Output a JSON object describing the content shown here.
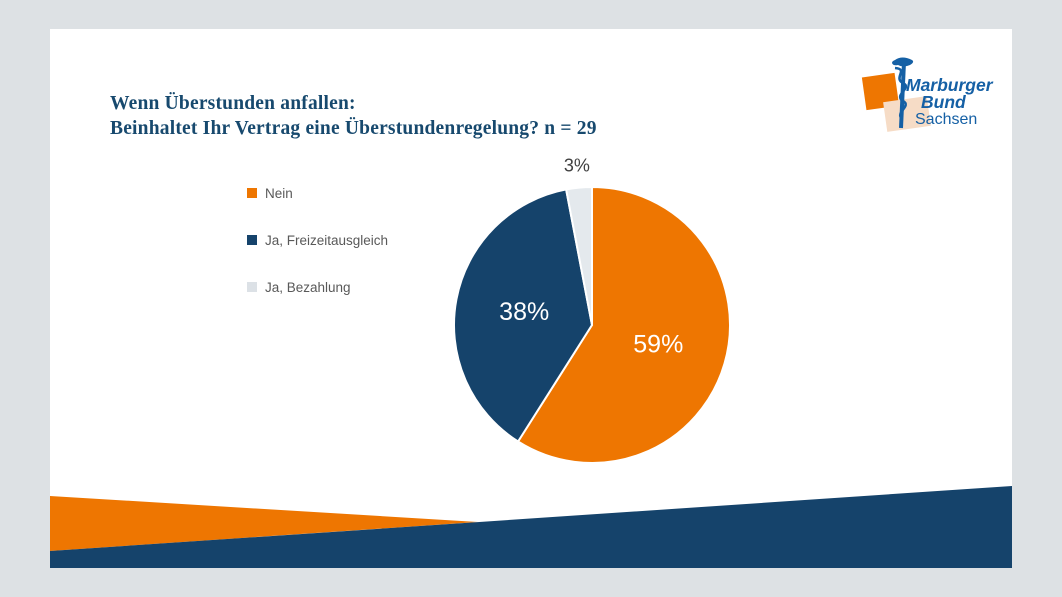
{
  "page": {
    "background_color": "#dde1e4",
    "card_color": "#ffffff"
  },
  "header": {
    "title_line1": "Wenn Überstunden anfallen:",
    "title_line2": "Beinhaltet Ihr Vertrag eine Überstundenregelung? n = 29",
    "title_color": "#17496e"
  },
  "logo": {
    "line1": "Marburger",
    "line2": "Bund",
    "line3": "Sachsen",
    "text_color": "#1560a5",
    "staff_color": "#1560a5",
    "orange_square_color": "#ee7601",
    "peach_square_color": "#f6dcc6"
  },
  "legend": {
    "text_color": "#595959",
    "items": [
      {
        "label": "Nein",
        "color": "#ee7601"
      },
      {
        "label": "Ja, Freizeitausgleich",
        "color": "#15436b"
      },
      {
        "label": "Ja, Bezahlung",
        "color": "#dce1e6"
      }
    ]
  },
  "chart_data": {
    "type": "pie",
    "title": "Wenn Überstunden anfallen: Beinhaltet Ihr Vertrag eine Überstundenregelung?",
    "sample_size_label": "n = 29",
    "labels": [
      "Nein",
      "Ja, Freizeitausgleich",
      "Ja, Bezahlung"
    ],
    "values": [
      59,
      38,
      3
    ],
    "unit": "%",
    "colors": [
      "#ee7601",
      "#15436b",
      "#e4e9ed"
    ],
    "data_labels": [
      "59%",
      "38%",
      "3%"
    ],
    "start_angle_deg": 0,
    "direction": "clockwise",
    "legend_position": "left",
    "slice_border_color": "#ffffff",
    "inside_label_color": "#ffffff",
    "outside_label_color": "#404040"
  },
  "footer_wave": {
    "orange_color": "#ee7601",
    "blue_color": "#15436b"
  }
}
